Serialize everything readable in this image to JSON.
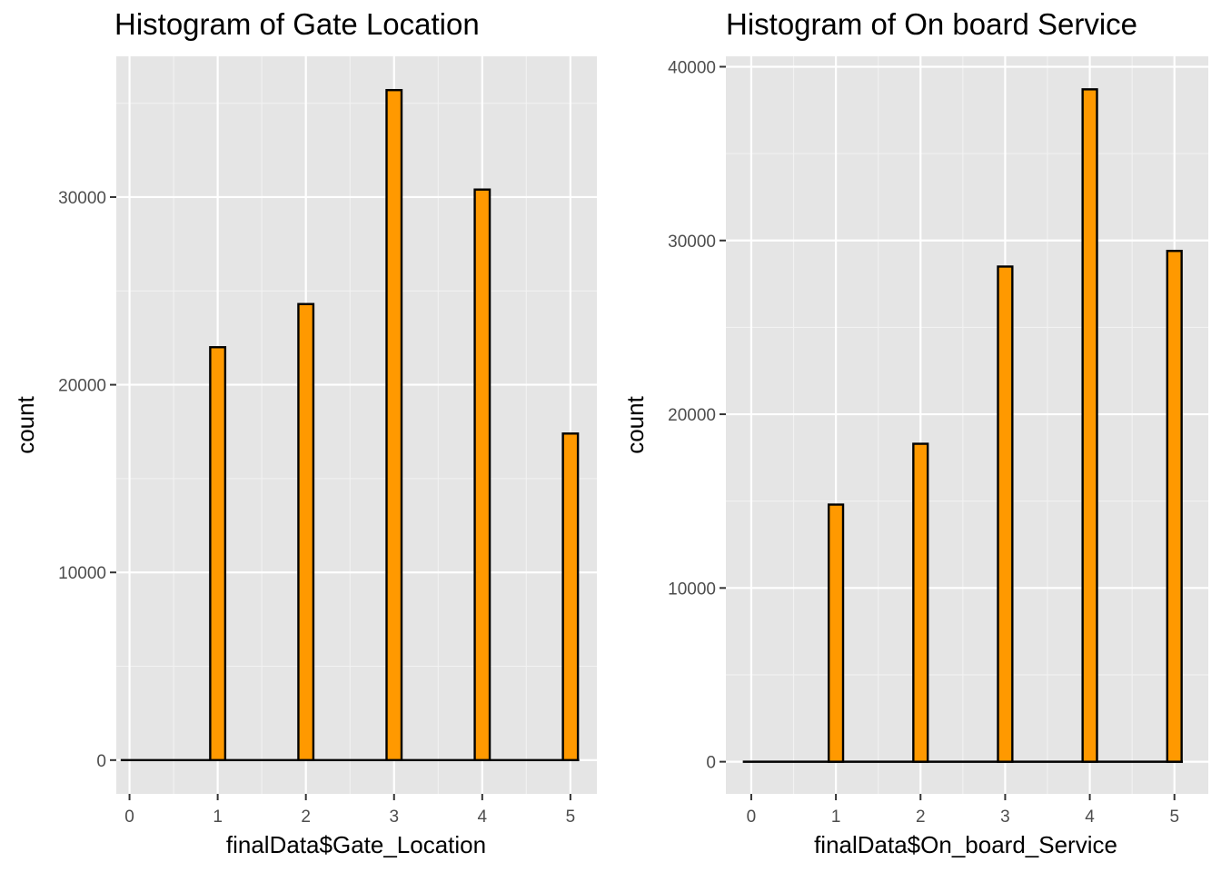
{
  "chart_data": [
    {
      "type": "bar",
      "title": "Histogram of Gate Location",
      "xlabel": "finalData$Gate_Location",
      "ylabel": "count",
      "x_ticks": [
        "0",
        "1",
        "2",
        "3",
        "4",
        "5"
      ],
      "y_ticks": [
        "0",
        "10000",
        "20000",
        "30000"
      ],
      "categories": [
        "0",
        "1",
        "2",
        "3",
        "4",
        "5"
      ],
      "values": [
        0,
        22000,
        24300,
        35700,
        30400,
        17400
      ],
      "xlim": [
        -0.15,
        5.3
      ],
      "ylim": [
        -1800,
        37500
      ],
      "bar_color": "#FF9900",
      "bar_outline": "#000000",
      "panel_background": "#E5E5E5",
      "grid": true
    },
    {
      "type": "bar",
      "title": "Histogram of On board Service",
      "xlabel": "finalData$On_board_Service",
      "ylabel": "count",
      "x_ticks": [
        "0",
        "1",
        "2",
        "3",
        "4",
        "5"
      ],
      "y_ticks": [
        "0",
        "10000",
        "20000",
        "30000",
        "40000"
      ],
      "categories": [
        "0",
        "1",
        "2",
        "3",
        "4",
        "5"
      ],
      "values": [
        0,
        14800,
        18300,
        28500,
        38700,
        29400
      ],
      "xlim": [
        -0.3,
        5.4
      ],
      "ylim": [
        -1850,
        40600
      ],
      "bar_color": "#FF9900",
      "bar_outline": "#000000",
      "panel_background": "#E5E5E5",
      "grid": true
    }
  ]
}
